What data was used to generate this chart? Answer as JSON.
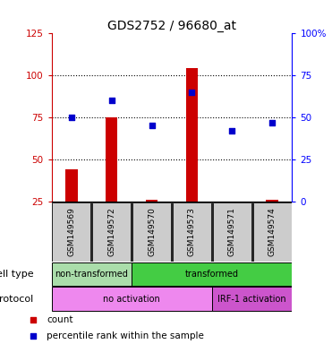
{
  "title": "GDS2752 / 96680_at",
  "samples": [
    "GSM149569",
    "GSM149572",
    "GSM149570",
    "GSM149573",
    "GSM149571",
    "GSM149574"
  ],
  "count_values": [
    44,
    75,
    26,
    104,
    25,
    26
  ],
  "percentile_values": [
    50,
    60,
    45,
    65,
    42,
    47
  ],
  "left_ylim": [
    25,
    125
  ],
  "right_ylim": [
    0,
    100
  ],
  "left_yticks": [
    25,
    50,
    75,
    100,
    125
  ],
  "right_yticks": [
    0,
    25,
    50,
    75,
    100
  ],
  "right_yticklabels": [
    "0",
    "25",
    "50",
    "75",
    "100%"
  ],
  "bar_color": "#cc0000",
  "scatter_color": "#0000cc",
  "cell_type_groups": [
    {
      "label": "non-transformed",
      "start": 0,
      "end": 2,
      "color": "#aaddaa"
    },
    {
      "label": "transformed",
      "start": 2,
      "end": 6,
      "color": "#44cc44"
    }
  ],
  "protocol_groups": [
    {
      "label": "no activation",
      "start": 0,
      "end": 4,
      "color": "#ee88ee"
    },
    {
      "label": "IRF-1 activation",
      "start": 4,
      "end": 6,
      "color": "#cc55cc"
    }
  ],
  "cell_type_label": "cell type",
  "protocol_label": "protocol",
  "legend_items": [
    {
      "color": "#cc0000",
      "label": "count"
    },
    {
      "color": "#0000cc",
      "label": "percentile rank within the sample"
    }
  ],
  "bg_color": "#ffffff",
  "sample_bg_color": "#cccccc",
  "title_fontsize": 10,
  "tick_fontsize": 7.5,
  "sample_fontsize": 6.5,
  "row_label_fontsize": 8,
  "legend_fontsize": 7.5
}
